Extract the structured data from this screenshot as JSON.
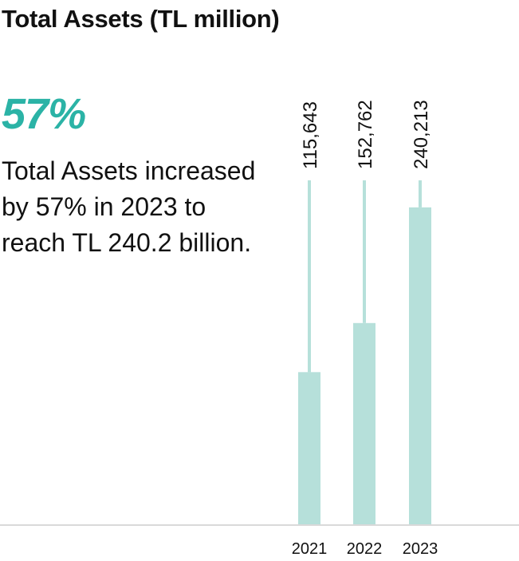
{
  "title": "Total Assets (TL million)",
  "highlight": {
    "value": "57%",
    "text": "Total Assets increased by 57% in 2023 to reach TL 240.2 billion."
  },
  "colors": {
    "bar": "#b6e0da",
    "highlight": "#2bb3a6",
    "baseline": "#d9d9d9",
    "text": "#111111"
  },
  "chart_data": {
    "type": "bar",
    "categories": [
      "2021",
      "2022",
      "2023"
    ],
    "values": [
      115643,
      152762,
      240213
    ],
    "value_labels": [
      "115,643",
      "152,762",
      "240,213"
    ],
    "xlabel": "",
    "ylabel": "",
    "ylim": [
      0,
      397000
    ],
    "grid": false,
    "legend": "none"
  }
}
